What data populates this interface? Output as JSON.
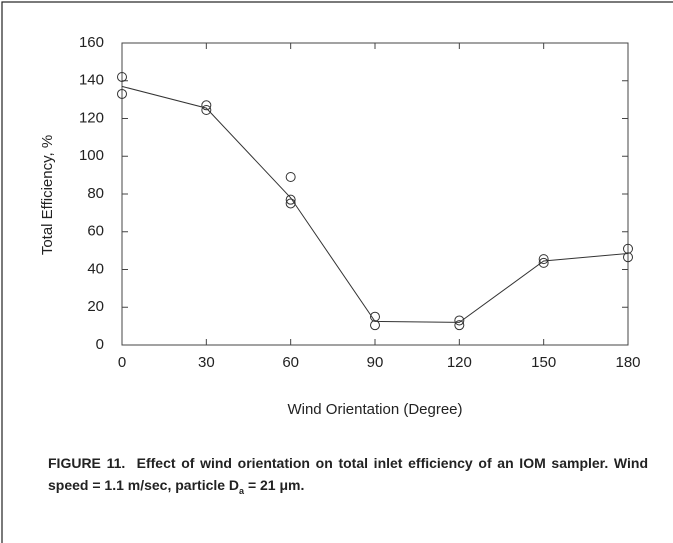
{
  "chart_data": {
    "type": "scatter-line",
    "xlabel": "Wind Orientation (Degree)",
    "ylabel": "Total Efficiency, %",
    "xlim": [
      0,
      180
    ],
    "xticks": [
      0,
      30,
      60,
      90,
      120,
      150,
      180
    ],
    "ylim": [
      0,
      160
    ],
    "yticks": [
      0,
      20,
      40,
      60,
      80,
      100,
      120,
      140,
      160
    ],
    "color": "#333333",
    "series": [
      {
        "mode": "markers",
        "x": [
          0,
          0,
          30,
          30,
          60,
          60,
          60,
          90,
          90,
          120,
          120,
          150,
          150,
          180,
          180
        ],
        "values": [
          142,
          133,
          127,
          124.5,
          89,
          77,
          75,
          15,
          10.5,
          13,
          10.5,
          45.5,
          43.5,
          51,
          46.5
        ]
      },
      {
        "mode": "line",
        "x": [
          0,
          30,
          60,
          90,
          120,
          150,
          180
        ],
        "values": [
          137,
          125.5,
          78,
          12.5,
          12,
          44.5,
          48.5
        ]
      }
    ]
  },
  "caption": {
    "label": "FIGURE 11.",
    "text": "Effect of wind orientation on total inlet efficiency of an IOM sampler. Wind speed = 1.1 m/sec, particle D",
    "subscript": "a",
    "text_after": " = 21 μm."
  }
}
